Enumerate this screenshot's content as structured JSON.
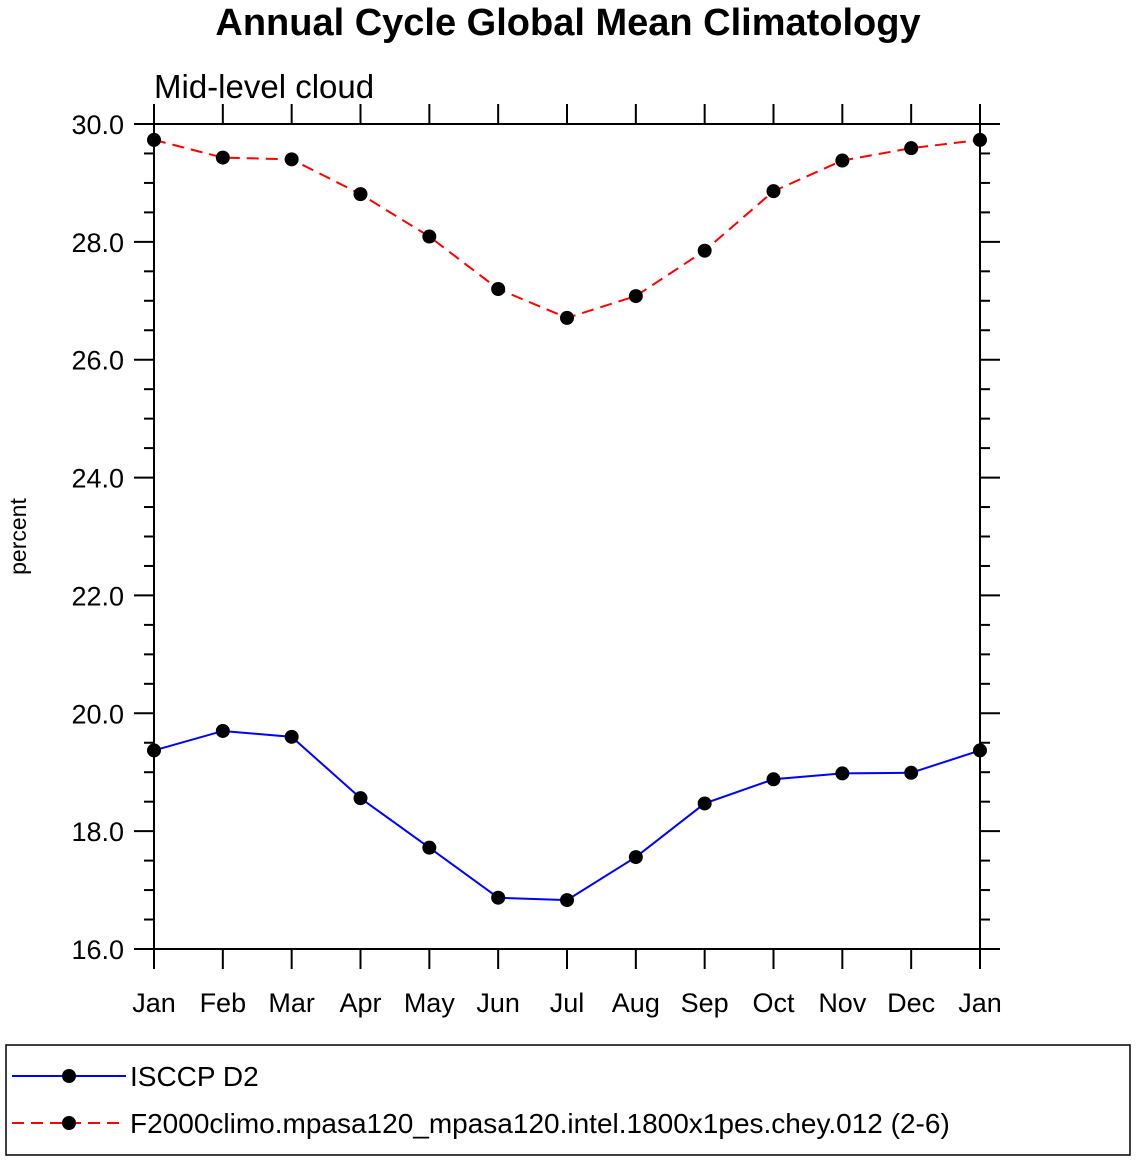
{
  "chart_data": {
    "type": "line",
    "title": "Annual Cycle Global Mean Climatology",
    "subtitle": "Mid-level cloud",
    "xlabel": "",
    "ylabel": "percent",
    "categories": [
      "Jan",
      "Feb",
      "Mar",
      "Apr",
      "May",
      "Jun",
      "Jul",
      "Aug",
      "Sep",
      "Oct",
      "Nov",
      "Dec",
      "Jan"
    ],
    "ylim": [
      16.0,
      30.0
    ],
    "yticks": [
      "16.0",
      "18.0",
      "20.0",
      "22.0",
      "24.0",
      "26.0",
      "28.0",
      "30.0"
    ],
    "grid": false,
    "series": [
      {
        "name": "ISCCP D2",
        "color": "#0000ff",
        "dash": "solid",
        "marker": "filled-circle",
        "values": [
          19.37,
          19.7,
          19.6,
          18.56,
          17.72,
          16.87,
          16.83,
          17.56,
          18.47,
          18.88,
          18.98,
          18.99,
          19.37
        ]
      },
      {
        "name": "F2000climo.mpasa120_mpasa120.intel.1800x1pes.chey.012 (2-6)",
        "color": "#ff0000",
        "dash": "dashed",
        "marker": "filled-circle",
        "values": [
          29.73,
          29.43,
          29.4,
          28.81,
          28.09,
          27.2,
          26.71,
          27.08,
          27.85,
          28.86,
          29.38,
          29.59,
          29.73
        ]
      }
    ],
    "legend_position": "bottom"
  }
}
